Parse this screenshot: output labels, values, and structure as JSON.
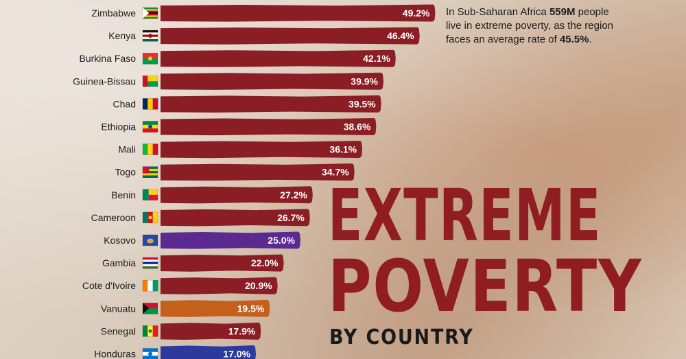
{
  "chart_data": {
    "type": "bar",
    "orientation": "horizontal",
    "title": "EXTREME POVERTY",
    "subtitle": "BY COUNTRY",
    "categories": [
      "Zimbabwe",
      "Kenya",
      "Burkina Faso",
      "Guinea-Bissau",
      "Chad",
      "Ethiopia",
      "Mali",
      "Togo",
      "Benin",
      "Cameroon",
      "Kosovo",
      "Gambia",
      "Cote d'Ivoire",
      "Vanuatu",
      "Senegal",
      "Honduras"
    ],
    "values": [
      49.2,
      46.4,
      42.1,
      39.9,
      39.5,
      38.6,
      36.1,
      34.7,
      27.2,
      26.7,
      25.0,
      22.0,
      20.9,
      19.5,
      17.9,
      17.0
    ],
    "value_labels": [
      "49.2%",
      "46.4%",
      "42.1%",
      "39.9%",
      "39.5%",
      "38.6%",
      "36.1%",
      "34.7%",
      "27.2%",
      "26.7%",
      "25.0%",
      "22.0%",
      "20.9%",
      "19.5%",
      "17.9%",
      "17.0%"
    ],
    "bar_colors": [
      "#8b1e24",
      "#8b1e24",
      "#8b1e24",
      "#8b1e24",
      "#8b1e24",
      "#8b1e24",
      "#8b1e24",
      "#8b1e24",
      "#8b1e24",
      "#8b1e24",
      "#5b2a91",
      "#8b1e24",
      "#8b1e24",
      "#c4601b",
      "#8b1e24",
      "#2b3a9c"
    ],
    "flags": [
      {
        "type": "horizontal",
        "colors": [
          "#1a8a3a",
          "#f4d000",
          "#c8102e",
          "#111111",
          "#c8102e",
          "#f4d000",
          "#1a8a3a"
        ],
        "triangle": "#ffffff"
      },
      {
        "type": "horizontal",
        "colors": [
          "#111111",
          "#ffffff",
          "#bb0000",
          "#ffffff",
          "#006b3f"
        ],
        "emblem": "#bb0000"
      },
      {
        "type": "horizontal",
        "colors": [
          "#ef2b2d",
          "#009e49"
        ],
        "emblem": "#fcd116"
      },
      {
        "type": "guinea-bissau",
        "colors": [
          "#ce1126",
          "#fcd116",
          "#009e49"
        ]
      },
      {
        "type": "vertical",
        "colors": [
          "#002664",
          "#fecb00",
          "#c60c30"
        ]
      },
      {
        "type": "horizontal",
        "colors": [
          "#078930",
          "#fcdd09",
          "#da121a"
        ],
        "emblem": "#0f47af"
      },
      {
        "type": "vertical",
        "colors": [
          "#14b53a",
          "#fcd116",
          "#ce1126"
        ]
      },
      {
        "type": "togo",
        "colors": [
          "#006a4e",
          "#ffce00",
          "#d21034"
        ]
      },
      {
        "type": "benin",
        "colors": [
          "#008751",
          "#fcd116",
          "#e8112d"
        ]
      },
      {
        "type": "vertical",
        "colors": [
          "#007a5e",
          "#ce1126",
          "#fcd116"
        ],
        "emblem": "#fcd116"
      },
      {
        "type": "solid",
        "colors": [
          "#244aa5"
        ],
        "emblem": "#d0a650"
      },
      {
        "type": "horizontal",
        "colors": [
          "#ce1126",
          "#ffffff",
          "#0c1c8c",
          "#ffffff",
          "#3a7728"
        ]
      },
      {
        "type": "vertical",
        "colors": [
          "#f77f00",
          "#ffffff",
          "#009e60"
        ]
      },
      {
        "type": "horizontal",
        "colors": [
          "#d21034",
          "#009543"
        ],
        "triangle": "#111111"
      },
      {
        "type": "vertical",
        "colors": [
          "#00853f",
          "#fdef42",
          "#e31b23"
        ],
        "emblem": "#00853f"
      },
      {
        "type": "horizontal",
        "colors": [
          "#0073cf",
          "#ffffff",
          "#0073cf"
        ],
        "emblem": "#0073cf"
      }
    ],
    "xlim": [
      0,
      50
    ]
  },
  "note": {
    "part1": "In Sub-Saharan Africa ",
    "bold1": "559M",
    "part2": " people live in extreme poverty, as the region faces an average rate of ",
    "bold2": "45.5%",
    "part3": "."
  },
  "heading": {
    "line1": "EXTREME",
    "line2": "POVERTY",
    "subtitle": "BY COUNTRY"
  }
}
